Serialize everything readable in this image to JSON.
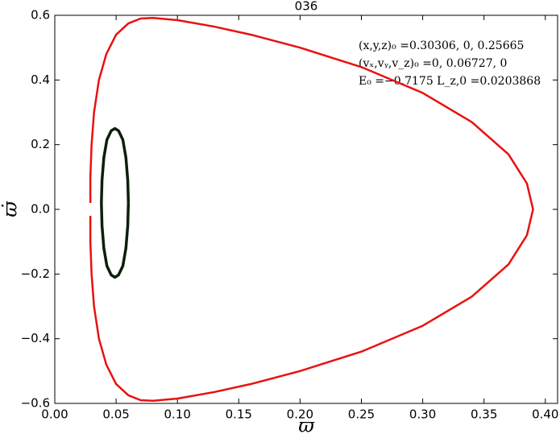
{
  "chart_data": {
    "type": "line",
    "title": "036",
    "xlabel": "ϖ",
    "ylabel": "ϖ̇",
    "annotations": [
      "(x,y,z)₀ =0.30306, 0, 0.25665",
      "(vₓ,vᵧ,v_z)₀ =0, 0.06727, 0",
      "E₀ =−0.7175   L_z,0 =0.0203868"
    ],
    "xlim": [
      0,
      0.41
    ],
    "ylim": [
      -0.6,
      0.6
    ],
    "xticks": [
      {
        "value": 0,
        "label": "0.00"
      },
      {
        "value": 0.05,
        "label": "0.05"
      },
      {
        "value": 0.1,
        "label": "0.10"
      },
      {
        "value": 0.15,
        "label": "0.15"
      },
      {
        "value": 0.2,
        "label": "0.20"
      },
      {
        "value": 0.25,
        "label": "0.25"
      },
      {
        "value": 0.3,
        "label": "0.30"
      },
      {
        "value": 0.35,
        "label": "0.35"
      },
      {
        "value": 0.4,
        "label": "0.40"
      }
    ],
    "yticks": [
      {
        "value": -0.6,
        "label": "−0.6"
      },
      {
        "value": -0.4,
        "label": "−0.4"
      },
      {
        "value": -0.2,
        "label": "−0.2"
      },
      {
        "value": 0,
        "label": "0.0"
      },
      {
        "value": 0.2,
        "label": "0.2"
      },
      {
        "value": 0.4,
        "label": "0.4"
      },
      {
        "value": 0.6,
        "label": "0.6"
      }
    ],
    "grid": false,
    "series": [
      {
        "color": "#e8110f",
        "x": [
          0.029,
          0.029,
          0.03,
          0.032,
          0.036,
          0.042,
          0.05,
          0.06,
          0.07,
          0.08,
          0.1,
          0.13,
          0.16,
          0.2,
          0.25,
          0.3,
          0.34,
          0.37,
          0.385,
          0.39,
          0.385,
          0.37,
          0.34,
          0.3,
          0.25,
          0.2,
          0.16,
          0.13,
          0.1,
          0.08,
          0.07,
          0.06,
          0.05,
          0.042,
          0.036,
          0.032,
          0.03,
          0.029,
          0.029
        ],
        "values": [
          0.02,
          0.1,
          0.2,
          0.3,
          0.4,
          0.48,
          0.54,
          0.575,
          0.59,
          0.592,
          0.585,
          0.565,
          0.54,
          0.5,
          0.44,
          0.36,
          0.27,
          0.17,
          0.08,
          0,
          -0.08,
          -0.17,
          -0.27,
          -0.36,
          -0.44,
          -0.5,
          -0.54,
          -0.565,
          -0.585,
          -0.592,
          -0.59,
          -0.575,
          -0.54,
          -0.48,
          -0.4,
          -0.3,
          -0.2,
          -0.1,
          -0.02
        ]
      },
      {
        "color": "#0b1f0b",
        "x": [
          0.06,
          0.0595,
          0.058,
          0.0555,
          0.052,
          0.049,
          0.046,
          0.0425,
          0.04,
          0.0385,
          0.038,
          0.0385,
          0.04,
          0.0425,
          0.046,
          0.049,
          0.052,
          0.0555,
          0.058,
          0.0595,
          0.06
        ],
        "values": [
          0.02,
          0.09,
          0.16,
          0.215,
          0.243,
          0.25,
          0.243,
          0.215,
          0.16,
          0.09,
          0.02,
          -0.05,
          -0.12,
          -0.175,
          -0.203,
          -0.21,
          -0.203,
          -0.175,
          -0.12,
          -0.05,
          0.02
        ]
      }
    ]
  }
}
